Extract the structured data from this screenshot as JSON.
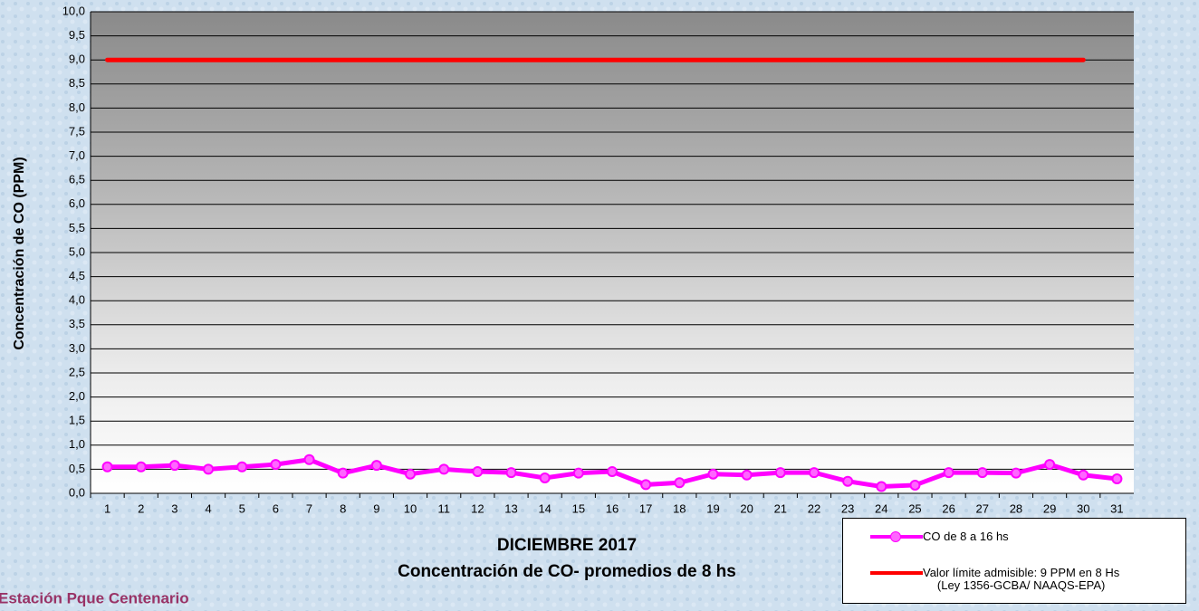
{
  "chart_data": {
    "type": "line",
    "ylabel": "Concentración de CO (PPM)",
    "xlabel": "DICIEMBRE 2017",
    "subtitle": "Concentración de CO- promedios de 8 hs",
    "station": "Estación Pque Centenario",
    "categories": [
      "1",
      "2",
      "3",
      "4",
      "5",
      "6",
      "7",
      "8",
      "9",
      "10",
      "11",
      "12",
      "13",
      "14",
      "15",
      "16",
      "17",
      "18",
      "19",
      "20",
      "21",
      "22",
      "23",
      "24",
      "25",
      "26",
      "27",
      "28",
      "29",
      "30",
      "31"
    ],
    "series": [
      {
        "name": "CO de 8 a 16 hs",
        "color": "#ff00ff",
        "markers": true,
        "values": [
          0.55,
          0.55,
          0.58,
          0.5,
          0.55,
          0.6,
          0.7,
          0.42,
          0.58,
          0.4,
          0.5,
          0.45,
          0.43,
          0.32,
          0.42,
          0.45,
          0.18,
          0.22,
          0.4,
          0.38,
          0.43,
          0.43,
          0.25,
          0.14,
          0.17,
          0.43,
          0.43,
          0.42,
          0.6,
          0.38,
          0.3
        ]
      },
      {
        "name": "Valor límite admisible: 9 PPM en 8 Hs\n(Ley 1356-GCBA/ NAAQS-EPA)",
        "color": "#ff0000",
        "markers": false,
        "values": [
          9,
          9,
          9,
          9,
          9,
          9,
          9,
          9,
          9,
          9,
          9,
          9,
          9,
          9,
          9,
          9,
          9,
          9,
          9,
          9,
          9,
          9,
          9,
          9,
          9,
          9,
          9,
          9,
          9,
          9,
          null
        ]
      }
    ],
    "ylim": [
      0,
      10
    ],
    "yticks": [
      {
        "value": 0,
        "label": "0,0"
      },
      {
        "value": 0.5,
        "label": "0,5"
      },
      {
        "value": 1,
        "label": "1,0"
      },
      {
        "value": 1.5,
        "label": "1,5"
      },
      {
        "value": 2,
        "label": "2,0"
      },
      {
        "value": 2.5,
        "label": "2,5"
      },
      {
        "value": 3,
        "label": "3,0"
      },
      {
        "value": 3.5,
        "label": "3,5"
      },
      {
        "value": 4,
        "label": "4,0"
      },
      {
        "value": 4.5,
        "label": "4,5"
      },
      {
        "value": 5,
        "label": "5,0"
      },
      {
        "value": 5.5,
        "label": "5,5"
      },
      {
        "value": 6,
        "label": "6,0"
      },
      {
        "value": 6.5,
        "label": "6,5"
      },
      {
        "value": 7,
        "label": "7,0"
      },
      {
        "value": 7.5,
        "label": "7,5"
      },
      {
        "value": 8,
        "label": "8,0"
      },
      {
        "value": 8.5,
        "label": "8,5"
      },
      {
        "value": 9,
        "label": "9,0"
      },
      {
        "value": 9.5,
        "label": "9,5"
      },
      {
        "value": 10,
        "label": "10,0"
      }
    ],
    "grid": true
  }
}
